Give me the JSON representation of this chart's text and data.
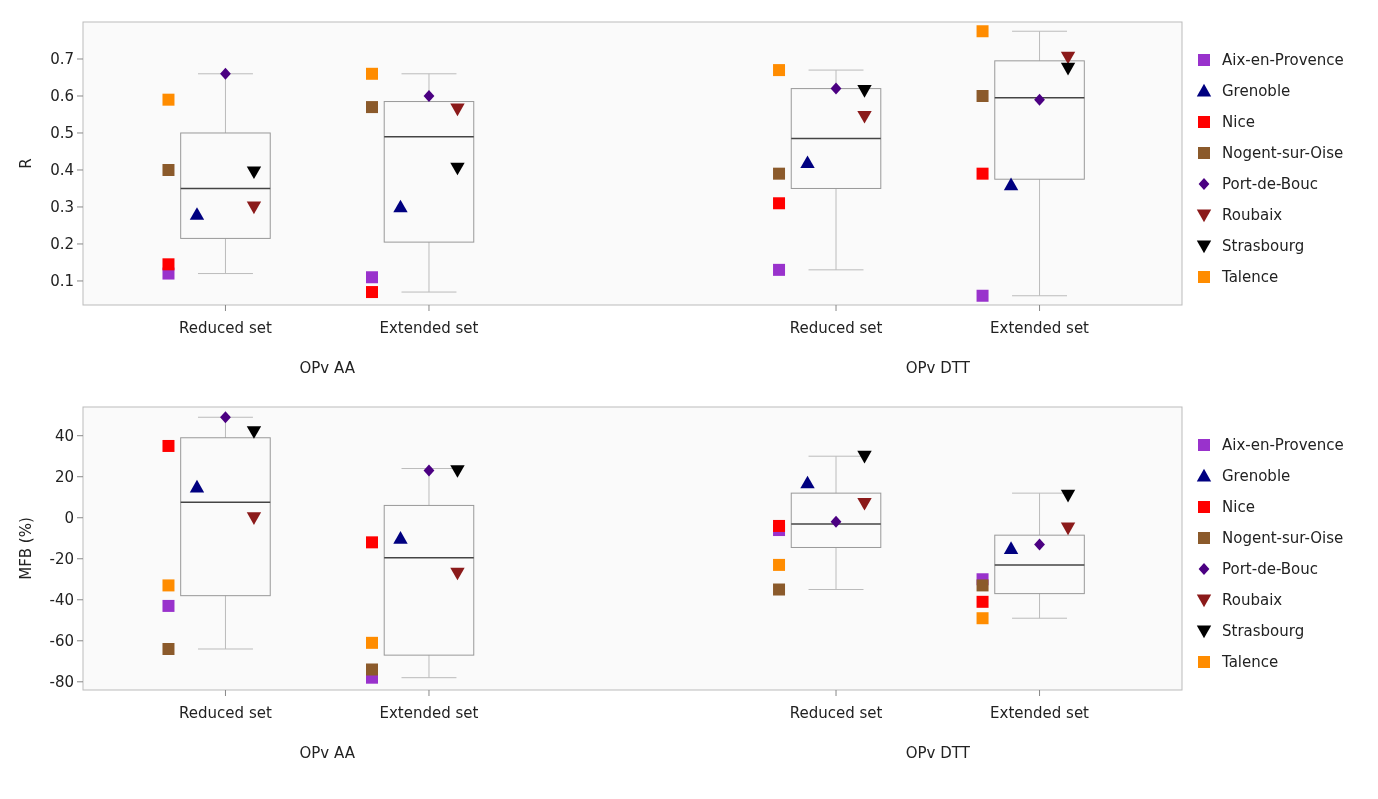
{
  "chart_data": [
    {
      "type": "box",
      "ylabel": "R",
      "categories": [
        "Reduced set",
        "Extended set",
        null,
        "Reduced set",
        "Extended set"
      ],
      "annotations": [
        "OPv AA",
        "OPv DTT"
      ],
      "ylim": [
        0.035,
        0.8
      ],
      "yticks": [
        0.1,
        0.2,
        0.3,
        0.4,
        0.5,
        0.6,
        0.7
      ],
      "grid": false,
      "legend": "right",
      "boxes": [
        {
          "low": 0.12,
          "q1": 0.215,
          "median": 0.35,
          "q3": 0.5,
          "high": 0.66
        },
        {
          "low": 0.07,
          "q1": 0.205,
          "median": 0.49,
          "q3": 0.585,
          "high": 0.66
        },
        null,
        {
          "low": 0.13,
          "q1": 0.35,
          "median": 0.485,
          "q3": 0.62,
          "high": 0.67
        },
        {
          "low": 0.06,
          "q1": 0.375,
          "median": 0.595,
          "q3": 0.695,
          "high": 0.775
        }
      ],
      "series": [
        {
          "type": "scatter",
          "name": "Aix-en-Provence",
          "color": "#9932cc",
          "marker": "square",
          "values": [
            0.12,
            0.11,
            null,
            0.13,
            0.06
          ]
        },
        {
          "type": "scatter",
          "name": "Grenoble",
          "color": "#000080",
          "marker": "triangle",
          "values": [
            0.28,
            0.3,
            null,
            0.42,
            0.36
          ]
        },
        {
          "type": "scatter",
          "name": "Nice",
          "color": "#ff0000",
          "marker": "square",
          "values": [
            0.145,
            0.07,
            null,
            0.31,
            0.39
          ]
        },
        {
          "type": "scatter",
          "name": "Nogent-sur-Oise",
          "color": "#8b5a2b",
          "marker": "square",
          "values": [
            0.4,
            0.57,
            null,
            0.39,
            0.6
          ]
        },
        {
          "type": "scatter",
          "name": "Port-de-Bouc",
          "color": "#4b0082",
          "marker": "diamond",
          "values": [
            0.66,
            0.6,
            null,
            0.62,
            0.59
          ]
        },
        {
          "type": "scatter",
          "name": "Roubaix",
          "color": "#8b1a1a",
          "marker": "triangle-down",
          "values": [
            0.3,
            0.565,
            null,
            0.545,
            0.705
          ]
        },
        {
          "type": "scatter",
          "name": "Strasbourg",
          "color": "#000000",
          "marker": "triangle-down",
          "values": [
            0.395,
            0.405,
            null,
            0.615,
            0.675
          ]
        },
        {
          "type": "scatter",
          "name": "Talence",
          "color": "#ff8c00",
          "marker": "square",
          "values": [
            0.59,
            0.66,
            null,
            0.67,
            0.775
          ]
        }
      ]
    },
    {
      "type": "box",
      "ylabel": "MFB (%)",
      "categories": [
        "Reduced set",
        "Extended set",
        null,
        "Reduced set",
        "Extended set"
      ],
      "annotations": [
        "OPv AA",
        "OPv DTT"
      ],
      "ylim": [
        -84,
        54
      ],
      "yticks": [
        -80,
        -60,
        -40,
        -20,
        0,
        20,
        40
      ],
      "grid": false,
      "legend": "right",
      "boxes": [
        {
          "low": -64,
          "q1": -38,
          "median": 7.5,
          "q3": 39,
          "high": 49
        },
        {
          "low": -78,
          "q1": -67,
          "median": -19.5,
          "q3": 6,
          "high": 24
        },
        null,
        {
          "low": -35,
          "q1": -14.5,
          "median": -3,
          "q3": 12,
          "high": 30
        },
        {
          "low": -49,
          "q1": -37,
          "median": -23,
          "q3": -8.5,
          "high": 12
        }
      ],
      "series": [
        {
          "type": "scatter",
          "name": "Aix-en-Provence",
          "color": "#9932cc",
          "marker": "square",
          "values": [
            -43,
            -78,
            null,
            -6,
            -30
          ]
        },
        {
          "type": "scatter",
          "name": "Grenoble",
          "color": "#000080",
          "marker": "triangle",
          "values": [
            15,
            -10,
            null,
            17,
            -15
          ]
        },
        {
          "type": "scatter",
          "name": "Nice",
          "color": "#ff0000",
          "marker": "square",
          "values": [
            35,
            -12,
            null,
            -4,
            -41
          ]
        },
        {
          "type": "scatter",
          "name": "Nogent-sur-Oise",
          "color": "#8b5a2b",
          "marker": "square",
          "values": [
            -64,
            -74,
            null,
            -35,
            -33
          ]
        },
        {
          "type": "scatter",
          "name": "Port-de-Bouc",
          "color": "#4b0082",
          "marker": "diamond",
          "values": [
            49,
            23,
            null,
            -2,
            -13
          ]
        },
        {
          "type": "scatter",
          "name": "Roubaix",
          "color": "#8b1a1a",
          "marker": "triangle-down",
          "values": [
            0,
            -27,
            null,
            7,
            -5
          ]
        },
        {
          "type": "scatter",
          "name": "Strasbourg",
          "color": "#000000",
          "marker": "triangle-down",
          "values": [
            42,
            23,
            null,
            30,
            11
          ]
        },
        {
          "type": "scatter",
          "name": "Talence",
          "color": "#ff8c00",
          "marker": "square",
          "values": [
            -33,
            -61,
            null,
            -23,
            -49
          ]
        }
      ]
    }
  ]
}
